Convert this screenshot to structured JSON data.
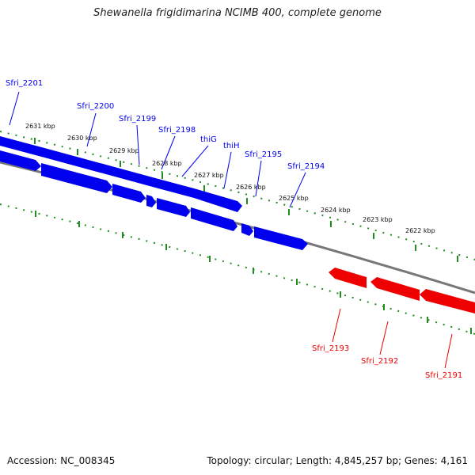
{
  "title": "Shewanella frigidimarina NCIMB 400, complete genome",
  "footer": {
    "accession": "Accession: NC_008345",
    "summary": "Topology: circular; Length: 4,845,257 bp; Genes: 4,161"
  },
  "colors": {
    "forward": "#0000ee",
    "reverse": "#ee0000",
    "backbone": "#777777",
    "ticks": "#228b22"
  },
  "ticks": [
    "2631 kbp",
    "2630 kbp",
    "2629 kbp",
    "2628 kbp",
    "2627 kbp",
    "2626 kbp",
    "2625 kbp",
    "2624 kbp",
    "2623 kbp",
    "2622 kbp"
  ],
  "forward_genes": [
    "Sfri_2201",
    "Sfri_2200",
    "Sfri_2199",
    "Sfri_2198",
    "thiG",
    "thiH",
    "Sfri_2195",
    "Sfri_2194"
  ],
  "reverse_genes": [
    "Sfri_2193",
    "Sfri_2192",
    "Sfri_2191"
  ]
}
